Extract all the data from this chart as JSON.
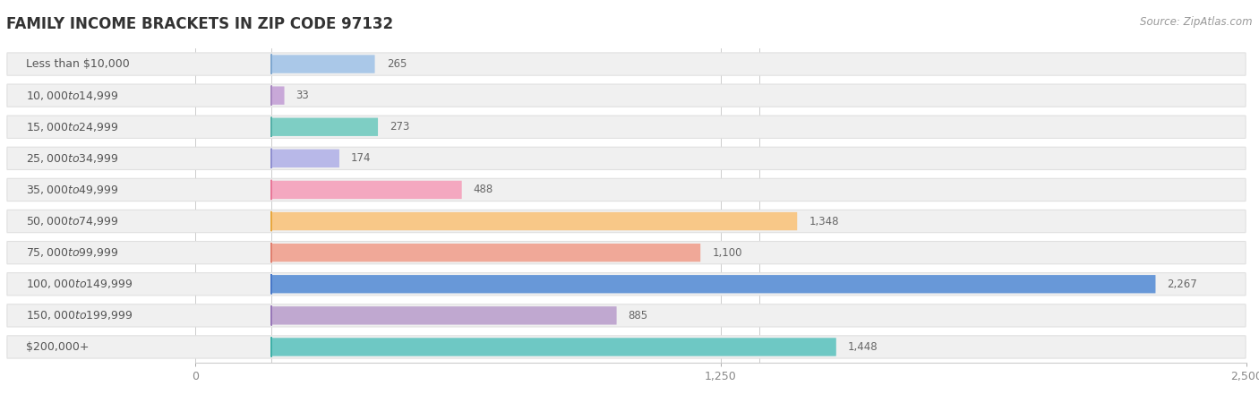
{
  "title": "FAMILY INCOME BRACKETS IN ZIP CODE 97132",
  "source": "Source: ZipAtlas.com",
  "categories": [
    "Less than $10,000",
    "$10,000 to $14,999",
    "$15,000 to $24,999",
    "$25,000 to $34,999",
    "$35,000 to $49,999",
    "$50,000 to $74,999",
    "$75,000 to $99,999",
    "$100,000 to $149,999",
    "$150,000 to $199,999",
    "$200,000+"
  ],
  "values": [
    265,
    33,
    273,
    174,
    488,
    1348,
    1100,
    2267,
    885,
    1448
  ],
  "bar_colors": [
    "#aac8e8",
    "#c8a8d8",
    "#7ecec4",
    "#b8b8e8",
    "#f4a8c0",
    "#f8c888",
    "#f0a898",
    "#6898d8",
    "#c0a8d0",
    "#6ec8c4"
  ],
  "dot_colors": [
    "#80a8d0",
    "#a888c0",
    "#55b0a8",
    "#9090d0",
    "#e87898",
    "#e8a840",
    "#e08070",
    "#4878c8",
    "#9878b8",
    "#40b0a8"
  ],
  "background_color": "#ffffff",
  "bar_background": "#f0f0f0",
  "data_xlim": [
    0,
    2500
  ],
  "xlabel_ticks": [
    0,
    1250,
    2500
  ],
  "xlabel_labels": [
    "0",
    "1,250",
    "2,500"
  ],
  "title_fontsize": 12,
  "label_fontsize": 9,
  "value_fontsize": 8.5,
  "source_fontsize": 8.5
}
